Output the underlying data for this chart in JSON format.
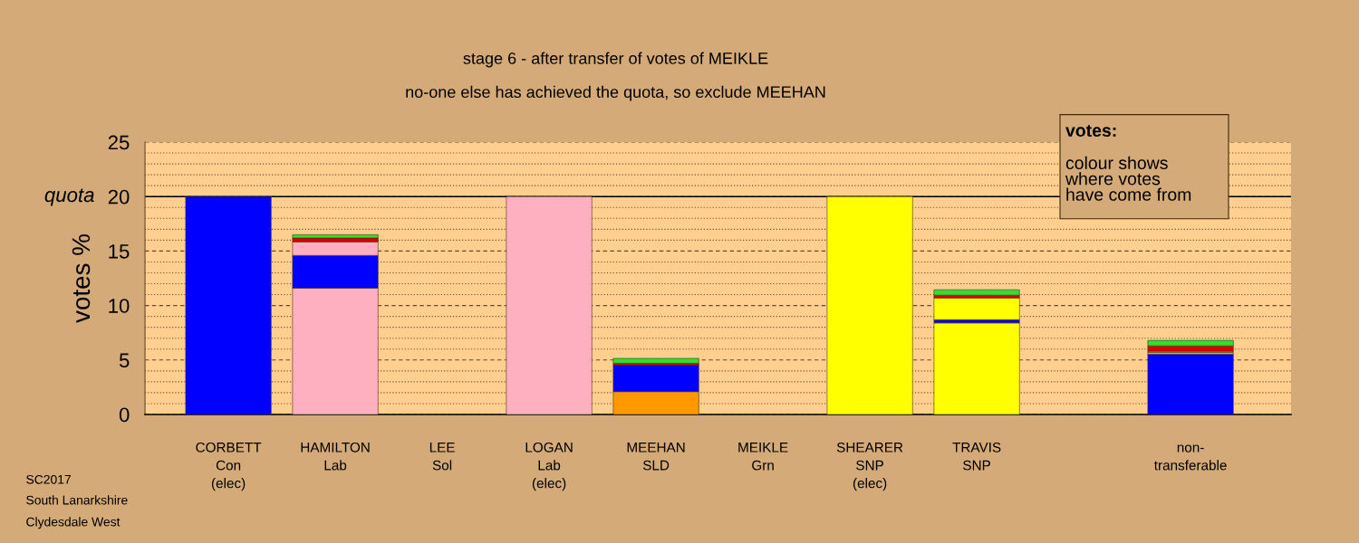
{
  "chart_data": {
    "type": "bar",
    "stacked": true,
    "title": "stage 6 - after transfer of votes of MEIKLE",
    "subtitle": "no-one else has achieved the quota, so exclude MEEHAN",
    "ylabel": "votes %",
    "categories": [
      "CORBETT\nCon\n(elec)",
      "HAMILTON\nLab",
      "LEE\nSol",
      "LOGAN\nLab\n(elec)",
      "MEEHAN\nSLD",
      "MEIKLE\nGrn",
      "SHEARER\nSNP\n(elec)",
      "TRAVIS\nSNP",
      null,
      "non-\ntransferable"
    ],
    "series": [
      {
        "colors": [
          "#0000ff",
          "#ffb0c0",
          "#ff0000",
          "#ffb0c0",
          "#ff9900",
          "#33cc33",
          "#ffff00",
          "#ffff00",
          "#0000ff",
          "#0000ff"
        ],
        "values": [
          20,
          11.6,
          0,
          20,
          2.1,
          0,
          20,
          8.4,
          0,
          0
        ]
      },
      {
        "colors": [
          "#0000ff",
          "#0000ff",
          "#0000ff",
          "#0000ff",
          "#0000ff",
          "#0000ff",
          "#0000ff",
          "#0000ff",
          "#0000ff",
          "#0000ff"
        ],
        "values": [
          0,
          3.0,
          0,
          0,
          2.45,
          0,
          0,
          0.3,
          0,
          5.55
        ]
      },
      {
        "colors": [
          "#ffb0c0",
          "#ffb0c0",
          "#ffb0c0",
          "#ffb0c0",
          "#ffb0c0",
          "#ffb0c0",
          "#ffb0c0",
          "#ffb0c0",
          "#ffb0c0",
          "#ffb0c0"
        ],
        "values": [
          0,
          1.25,
          0,
          0,
          0,
          0,
          0,
          0,
          0,
          0.15
        ]
      },
      {
        "colors": [
          "#ffff00",
          "#ffff00",
          "#ffff00",
          "#ffff00",
          "#ffff00",
          "#ffff00",
          "#ffff00",
          "#ffff00",
          "#ffff00",
          "#ffff00"
        ],
        "values": [
          0,
          0,
          0,
          0,
          0,
          0,
          0,
          2.0,
          0,
          0.1
        ]
      },
      {
        "colors": [
          "#dd0000",
          "#dd0000",
          "#dd0000",
          "#dd0000",
          "#dd0000",
          "#dd0000",
          "#dd0000",
          "#dd0000",
          "#dd0000",
          "#dd0000"
        ],
        "values": [
          0,
          0.35,
          0,
          0,
          0.15,
          0,
          0,
          0.25,
          0,
          0.5
        ]
      },
      {
        "colors": [
          "#33dd33",
          "#33dd33",
          "#33dd33",
          "#33dd33",
          "#33dd33",
          "#33dd33",
          "#33dd33",
          "#33dd33",
          "#33dd33",
          "#33dd33"
        ],
        "values": [
          0,
          0.3,
          0,
          0,
          0.45,
          0,
          0,
          0.5,
          0,
          0.5
        ]
      }
    ],
    "ylim": [
      0,
      25
    ],
    "yticks": [
      0,
      {
        "value": 1,
        "label": null
      },
      {
        "value": 2,
        "label": null
      },
      {
        "value": 3,
        "label": null
      },
      {
        "value": 4,
        "label": null
      },
      5,
      {
        "value": 6,
        "label": null
      },
      {
        "value": 7,
        "label": null
      },
      {
        "value": 8,
        "label": null
      },
      {
        "value": 9,
        "label": null
      },
      10,
      {
        "value": 11,
        "label": null
      },
      {
        "value": 12,
        "label": null
      },
      {
        "value": 13,
        "label": null
      },
      {
        "value": 14,
        "label": null
      },
      15,
      {
        "value": 16,
        "label": null
      },
      {
        "value": 17,
        "label": null
      },
      {
        "value": 18,
        "label": null
      },
      {
        "value": 19,
        "label": null
      },
      20,
      {
        "value": 21,
        "label": null
      },
      {
        "value": 22,
        "label": null
      },
      {
        "value": 23,
        "label": null
      },
      {
        "value": 24,
        "label": null
      },
      25
    ],
    "grid": "y",
    "ref_lines": [
      {
        "axis": "y",
        "value": 20,
        "label": "quota",
        "color": "#000000",
        "line_style": "solid"
      }
    ],
    "annotations": [
      "votes:",
      "colour shows\nwhere votes\nhave come from",
      "SC2017",
      "South Lanarkshire",
      "Clydesdale West"
    ]
  }
}
